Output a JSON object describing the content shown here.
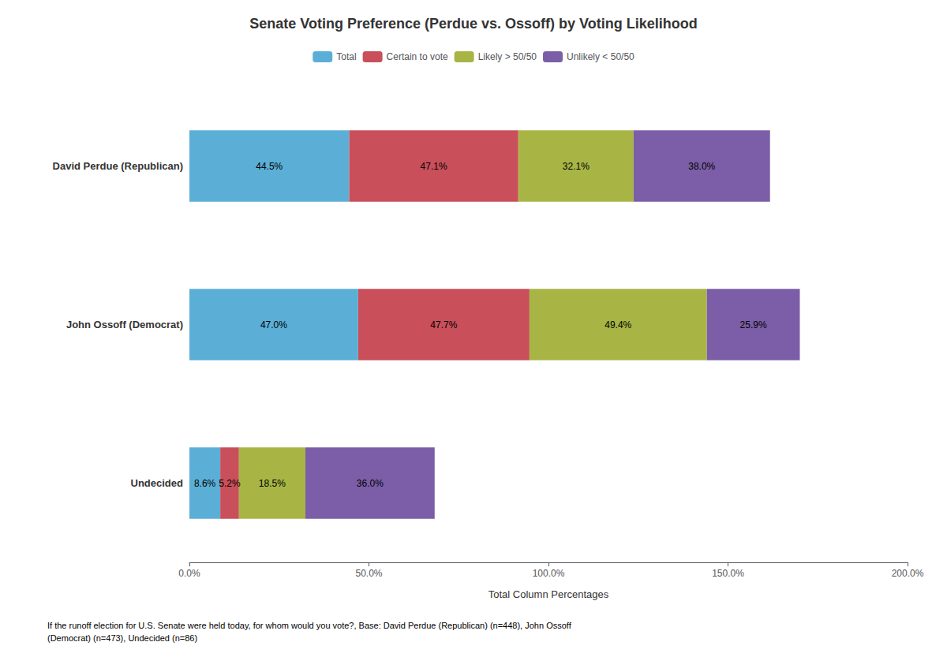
{
  "chart_data": {
    "type": "bar",
    "orientation": "horizontal",
    "stacked": true,
    "title": "Senate Voting Preference (Perdue vs. Ossoff) by Voting Likelihood",
    "categories": [
      "David Perdue (Republican)",
      "John Ossoff (Democrat)",
      "Undecided"
    ],
    "series": [
      {
        "name": "Total",
        "color": "#5BAFD6",
        "values": [
          44.5,
          47.0,
          8.6
        ],
        "value_labels": [
          "44.5%",
          "47.0%",
          "8.6%"
        ]
      },
      {
        "name": "Certain to vote",
        "color": "#C94F5A",
        "values": [
          47.1,
          47.7,
          5.2
        ],
        "value_labels": [
          "47.1%",
          "47.7%",
          "5.2%"
        ]
      },
      {
        "name": "Likely > 50/50",
        "color": "#A8B545",
        "values": [
          32.1,
          49.4,
          18.5
        ],
        "value_labels": [
          "32.1%",
          "49.4%",
          "18.5%"
        ]
      },
      {
        "name": "Unlikely < 50/50",
        "color": "#7B5EA7",
        "values": [
          38.0,
          25.9,
          36.0
        ],
        "value_labels": [
          "38.0%",
          "25.9%",
          "36.0%"
        ]
      }
    ],
    "xlabel": "Total Column Percentages",
    "xlim": [
      0,
      200
    ],
    "xticks": [
      {
        "value": 0,
        "label": "0.0%"
      },
      {
        "value": 50,
        "label": "50.0%"
      },
      {
        "value": 100,
        "label": "100.0%"
      },
      {
        "value": 150,
        "label": "150.0%"
      },
      {
        "value": 200,
        "label": "200.0%"
      }
    ],
    "data_labels": true,
    "legend": "top",
    "grid": false,
    "annotations": [
      "If the runoff election for U.S. Senate were held today, for whom would you vote?, Base: David Perdue (Republican) (n=448), John Ossoff\n(Democrat) (n=473), Undecided (n=86)"
    ]
  }
}
